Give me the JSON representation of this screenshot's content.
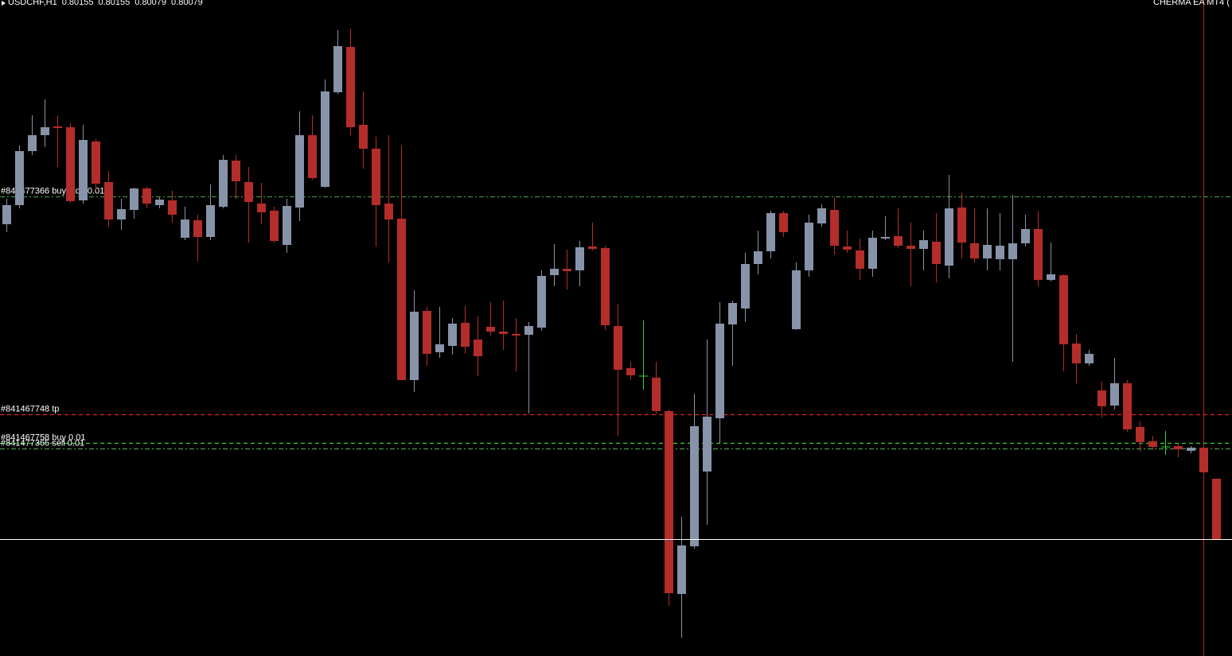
{
  "chart_data": {
    "type": "candlestick",
    "title": "USDCHF,H1",
    "annotation": "CHERMA EA MT4 (",
    "ylim": [
      0.79932,
      0.80757
    ],
    "up_color": "#8793a8",
    "down_color": "#b32d2b",
    "doji_color": "#2fd12f",
    "open": [
      0.80475,
      0.80499,
      0.80567,
      0.80587,
      0.80598,
      0.80597,
      0.80505,
      0.80579,
      0.80528,
      0.80481,
      0.80493,
      0.8052,
      0.80499,
      0.80505,
      0.80458,
      0.8048,
      0.80459,
      0.80497,
      0.80555,
      0.80528,
      0.80501,
      0.80492,
      0.80449,
      0.80496,
      0.80587,
      0.80522,
      0.80641,
      0.80698,
      0.806,
      0.8057,
      0.80501,
      0.80482,
      0.80279,
      0.80366,
      0.80314,
      0.80322,
      0.80351,
      0.8033,
      0.80346,
      0.8034,
      0.80337,
      0.80336,
      0.80345,
      0.80411,
      0.80419,
      0.80417,
      0.80447,
      0.80445,
      0.80347,
      0.80294,
      0.80284,
      0.80282,
      0.8024,
      0.8001,
      0.8007,
      0.80164,
      0.80231,
      0.80349,
      0.80369,
      0.80425,
      0.80441,
      0.80489,
      0.80343,
      0.80417,
      0.80476,
      0.80493,
      0.80447,
      0.80442,
      0.80419,
      0.80457,
      0.8046,
      0.80448,
      0.80444,
      0.80453,
      0.80423,
      0.80496,
      0.80451,
      0.80432,
      0.80431,
      0.80431,
      0.80451,
      0.80469,
      0.80405,
      0.80411,
      0.80325,
      0.803,
      0.80266,
      0.80247,
      0.80275,
      0.8022,
      0.80202,
      0.80195,
      0.80196,
      0.8019,
      0.80194,
      0.80155
    ],
    "high": [
      0.80507,
      0.80574,
      0.80612,
      0.80632,
      0.80612,
      0.80602,
      0.806,
      0.80582,
      0.80542,
      0.80507,
      0.80521,
      0.80522,
      0.80509,
      0.80517,
      0.80497,
      0.80487,
      0.80525,
      0.80562,
      0.80562,
      0.80547,
      0.80527,
      0.80497,
      0.80507,
      0.80617,
      0.80612,
      0.80657,
      0.80719,
      0.80721,
      0.80642,
      0.80585,
      0.80587,
      0.80574,
      0.80392,
      0.80371,
      0.80371,
      0.80357,
      0.80372,
      0.80359,
      0.80377,
      0.80379,
      0.80357,
      0.80352,
      0.80417,
      0.8045,
      0.80443,
      0.80454,
      0.80477,
      0.80448,
      0.80375,
      0.80302,
      0.80354,
      0.80302,
      0.80242,
      0.80107,
      0.80262,
      0.8033,
      0.80377,
      0.80379,
      0.80439,
      0.80467,
      0.80492,
      0.80492,
      0.80427,
      0.80487,
      0.805,
      0.80509,
      0.80467,
      0.80457,
      0.80467,
      0.80485,
      0.80495,
      0.80477,
      0.80467,
      0.80489,
      0.80537,
      0.80515,
      0.80495,
      0.80495,
      0.80489,
      0.80512,
      0.80487,
      0.80492,
      0.80452,
      0.80412,
      0.80337,
      0.80317,
      0.80277,
      0.80307,
      0.80279,
      0.80227,
      0.80209,
      0.80215,
      0.80199,
      0.80196,
      0.80197,
      0.80155
    ],
    "low": [
      0.80465,
      0.80495,
      0.80562,
      0.80572,
      0.80547,
      0.80502,
      0.80501,
      0.80517,
      0.80472,
      0.80468,
      0.80482,
      0.80495,
      0.80495,
      0.80477,
      0.80455,
      0.80429,
      0.80455,
      0.80495,
      0.80507,
      0.80452,
      0.80475,
      0.80452,
      0.80439,
      0.80479,
      0.80531,
      0.80521,
      0.80639,
      0.80587,
      0.80545,
      0.80447,
      0.80427,
      0.80279,
      0.80264,
      0.80297,
      0.80307,
      0.80311,
      0.80312,
      0.80284,
      0.80335,
      0.80317,
      0.8029,
      0.80237,
      0.80341,
      0.80397,
      0.80393,
      0.80397,
      0.80442,
      0.80342,
      0.80209,
      0.80279,
      0.80267,
      0.80237,
      0.79995,
      0.79955,
      0.80067,
      0.80097,
      0.80199,
      0.80297,
      0.80352,
      0.80412,
      0.80432,
      0.80459,
      0.80342,
      0.80409,
      0.80472,
      0.80437,
      0.80439,
      0.80405,
      0.80409,
      0.80455,
      0.80445,
      0.80397,
      0.80417,
      0.80402,
      0.80407,
      0.80432,
      0.80427,
      0.80417,
      0.80417,
      0.80302,
      0.80447,
      0.80397,
      0.80403,
      0.8029,
      0.80275,
      0.80297,
      0.80232,
      0.80242,
      0.80214,
      0.80189,
      0.80191,
      0.80185,
      0.80182,
      0.80187,
      0.80159,
      0.80079
    ],
    "close": [
      0.80499,
      0.80567,
      0.80587,
      0.80597,
      0.80596,
      0.80504,
      0.80581,
      0.80526,
      0.80481,
      0.80494,
      0.8052,
      0.80501,
      0.80506,
      0.80487,
      0.80481,
      0.80459,
      0.80499,
      0.80556,
      0.80529,
      0.80503,
      0.8049,
      0.80454,
      0.80498,
      0.80587,
      0.80533,
      0.80642,
      0.80699,
      0.80597,
      0.8057,
      0.80499,
      0.80481,
      0.80279,
      0.80365,
      0.80312,
      0.80324,
      0.8035,
      0.80321,
      0.80309,
      0.8034,
      0.80337,
      0.80335,
      0.80347,
      0.8041,
      0.80419,
      0.80416,
      0.80446,
      0.80444,
      0.80348,
      0.80292,
      0.80285,
      0.80284,
      0.8024,
      0.80011,
      0.80071,
      0.80221,
      0.80233,
      0.8035,
      0.80376,
      0.80425,
      0.80441,
      0.80489,
      0.80465,
      0.80417,
      0.80477,
      0.80495,
      0.80448,
      0.80443,
      0.80419,
      0.80458,
      0.80459,
      0.80448,
      0.80444,
      0.80455,
      0.80425,
      0.80495,
      0.80452,
      0.80432,
      0.80449,
      0.80448,
      0.80451,
      0.80469,
      0.80405,
      0.80412,
      0.80324,
      0.803,
      0.80312,
      0.80246,
      0.80275,
      0.80217,
      0.80201,
      0.80195,
      0.80195,
      0.80192,
      0.80194,
      0.80163,
      0.80079
    ],
    "bid_color": "#ffffff",
    "levels": [
      {
        "label": "#841477366 buy stop 0.01",
        "value": 0.8051,
        "color": "#3f8f3f",
        "dash": "6 3 2 3"
      },
      {
        "label": "#841467748 tp",
        "value": 0.80236,
        "color": "#e32222",
        "dash": "5 4"
      },
      {
        "label": "#841467758 buy 0.01",
        "value": 0.802,
        "color": "#36d336",
        "dash": "5 4"
      },
      {
        "label": "#841477365 sell 0.01",
        "value": 0.80193,
        "color": "#4a9a4a",
        "dash": "6 3 2 3"
      }
    ]
  }
}
